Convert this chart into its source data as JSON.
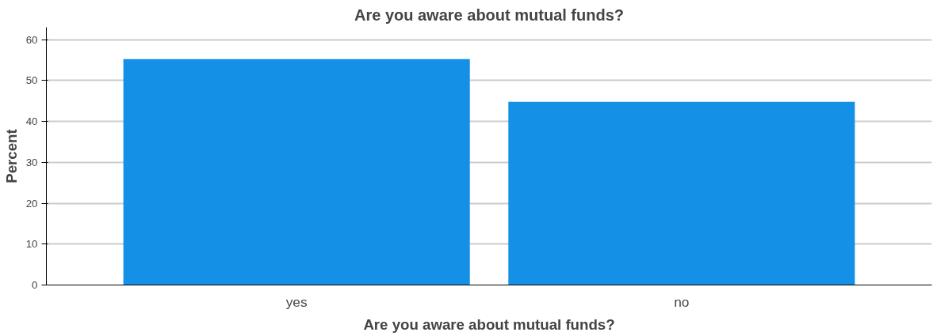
{
  "chart_data": {
    "type": "bar",
    "title": "Are you aware about mutual funds?",
    "xlabel": "Are you aware about mutual funds?",
    "ylabel": "Percent",
    "categories": [
      "yes",
      "no"
    ],
    "values": [
      55.2,
      44.8
    ],
    "color": "#1491e6",
    "ylim": [
      0,
      63
    ],
    "yticks": [
      0,
      10,
      20,
      30,
      40,
      50,
      60
    ],
    "grid": "y"
  }
}
